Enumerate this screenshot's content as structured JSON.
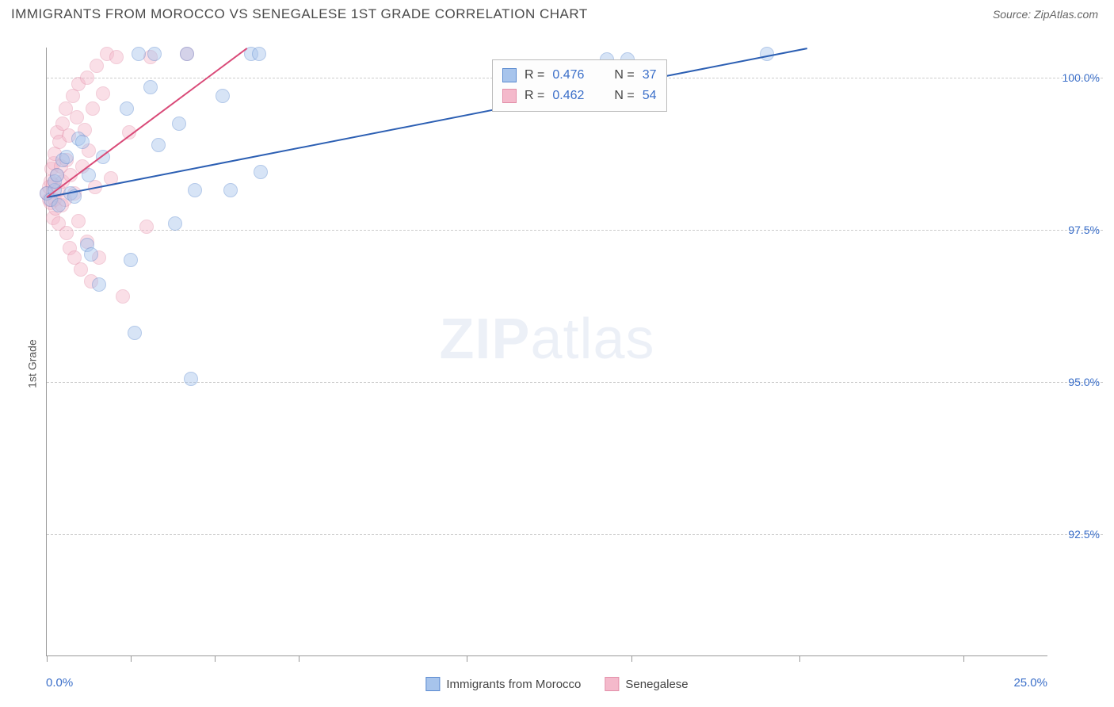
{
  "title": "IMMIGRANTS FROM MOROCCO VS SENEGALESE 1ST GRADE CORRELATION CHART",
  "source": "Source: ZipAtlas.com",
  "ylabel": "1st Grade",
  "watermark": {
    "bold": "ZIP",
    "light": "atlas"
  },
  "chart": {
    "type": "scatter",
    "background_color": "#ffffff",
    "grid_color": "#cccccc",
    "axis_color": "#999999",
    "tick_label_color": "#3b6fc9",
    "xlim": [
      0,
      25
    ],
    "ylim": [
      90.5,
      100.5
    ],
    "xtick_label_left": "0.0%",
    "xtick_label_right": "25.0%",
    "xtick_positions": [
      0,
      2.1,
      4.2,
      6.3,
      10.5,
      14.6,
      18.8,
      22.9
    ],
    "ygrid": [
      {
        "value": 100.0,
        "label": "100.0%"
      },
      {
        "value": 97.5,
        "label": "97.5%"
      },
      {
        "value": 95.0,
        "label": "95.0%"
      },
      {
        "value": 92.5,
        "label": "92.5%"
      }
    ],
    "marker_radius": 9,
    "marker_opacity": 0.45,
    "series": [
      {
        "name": "Immigrants from Morocco",
        "fill_color": "#a7c4ec",
        "stroke_color": "#5a8ad0",
        "trend_color": "#2c5fb3",
        "R": "0.476",
        "N": "37",
        "trend": {
          "x1": 0.0,
          "y1": 98.05,
          "x2": 19.0,
          "y2": 100.5
        },
        "points": [
          [
            0.0,
            98.1
          ],
          [
            0.1,
            98.0
          ],
          [
            0.2,
            98.15
          ],
          [
            0.2,
            98.3
          ],
          [
            0.25,
            98.4
          ],
          [
            0.3,
            97.9
          ],
          [
            0.4,
            98.65
          ],
          [
            0.5,
            98.7
          ],
          [
            0.6,
            98.1
          ],
          [
            0.7,
            98.05
          ],
          [
            0.8,
            99.0
          ],
          [
            0.9,
            98.95
          ],
          [
            1.0,
            97.25
          ],
          [
            1.05,
            98.4
          ],
          [
            1.1,
            97.1
          ],
          [
            1.3,
            96.6
          ],
          [
            1.4,
            98.7
          ],
          [
            2.0,
            99.5
          ],
          [
            2.1,
            97.0
          ],
          [
            2.2,
            95.8
          ],
          [
            2.3,
            100.4
          ],
          [
            2.6,
            99.85
          ],
          [
            2.7,
            100.4
          ],
          [
            2.8,
            98.9
          ],
          [
            3.2,
            97.6
          ],
          [
            3.3,
            99.25
          ],
          [
            3.5,
            100.4
          ],
          [
            3.6,
            95.05
          ],
          [
            3.7,
            98.15
          ],
          [
            4.4,
            99.7
          ],
          [
            4.6,
            98.15
          ],
          [
            5.1,
            100.4
          ],
          [
            5.3,
            100.4
          ],
          [
            5.35,
            98.45
          ],
          [
            14.0,
            100.3
          ],
          [
            14.5,
            100.3
          ],
          [
            18.0,
            100.4
          ]
        ]
      },
      {
        "name": "Senegalese",
        "fill_color": "#f4b9cb",
        "stroke_color": "#e38fa9",
        "trend_color": "#d94a78",
        "R": "0.462",
        "N": "54",
        "trend": {
          "x1": 0.0,
          "y1": 98.05,
          "x2": 5.0,
          "y2": 100.5
        },
        "points": [
          [
            0.0,
            98.1
          ],
          [
            0.05,
            98.0
          ],
          [
            0.05,
            98.2
          ],
          [
            0.1,
            97.95
          ],
          [
            0.1,
            98.3
          ],
          [
            0.12,
            98.5
          ],
          [
            0.15,
            97.7
          ],
          [
            0.15,
            98.25
          ],
          [
            0.18,
            98.6
          ],
          [
            0.2,
            98.0
          ],
          [
            0.2,
            98.75
          ],
          [
            0.22,
            97.85
          ],
          [
            0.25,
            98.4
          ],
          [
            0.25,
            99.1
          ],
          [
            0.3,
            97.6
          ],
          [
            0.3,
            98.15
          ],
          [
            0.32,
            98.95
          ],
          [
            0.35,
            98.55
          ],
          [
            0.38,
            97.9
          ],
          [
            0.4,
            98.3
          ],
          [
            0.4,
            99.25
          ],
          [
            0.45,
            98.0
          ],
          [
            0.48,
            99.5
          ],
          [
            0.5,
            97.45
          ],
          [
            0.5,
            98.65
          ],
          [
            0.55,
            99.05
          ],
          [
            0.58,
            97.2
          ],
          [
            0.6,
            98.4
          ],
          [
            0.65,
            99.7
          ],
          [
            0.7,
            97.05
          ],
          [
            0.7,
            98.1
          ],
          [
            0.75,
            99.35
          ],
          [
            0.8,
            97.65
          ],
          [
            0.8,
            99.9
          ],
          [
            0.85,
            96.85
          ],
          [
            0.9,
            98.55
          ],
          [
            0.95,
            99.15
          ],
          [
            1.0,
            97.3
          ],
          [
            1.0,
            100.0
          ],
          [
            1.05,
            98.8
          ],
          [
            1.1,
            96.65
          ],
          [
            1.15,
            99.5
          ],
          [
            1.2,
            98.2
          ],
          [
            1.25,
            100.2
          ],
          [
            1.3,
            97.05
          ],
          [
            1.4,
            99.75
          ],
          [
            1.5,
            100.4
          ],
          [
            1.6,
            98.35
          ],
          [
            1.75,
            100.35
          ],
          [
            1.9,
            96.4
          ],
          [
            2.05,
            99.1
          ],
          [
            2.5,
            97.55
          ],
          [
            2.6,
            100.35
          ],
          [
            3.5,
            100.4
          ]
        ]
      }
    ],
    "stats_box": {
      "left_pct": 44.5,
      "top_pct": 2
    }
  },
  "bottom_legend": [
    {
      "label": "Immigrants from Morocco",
      "fill": "#a7c4ec",
      "stroke": "#5a8ad0"
    },
    {
      "label": "Senegalese",
      "fill": "#f4b9cb",
      "stroke": "#e38fa9"
    }
  ]
}
